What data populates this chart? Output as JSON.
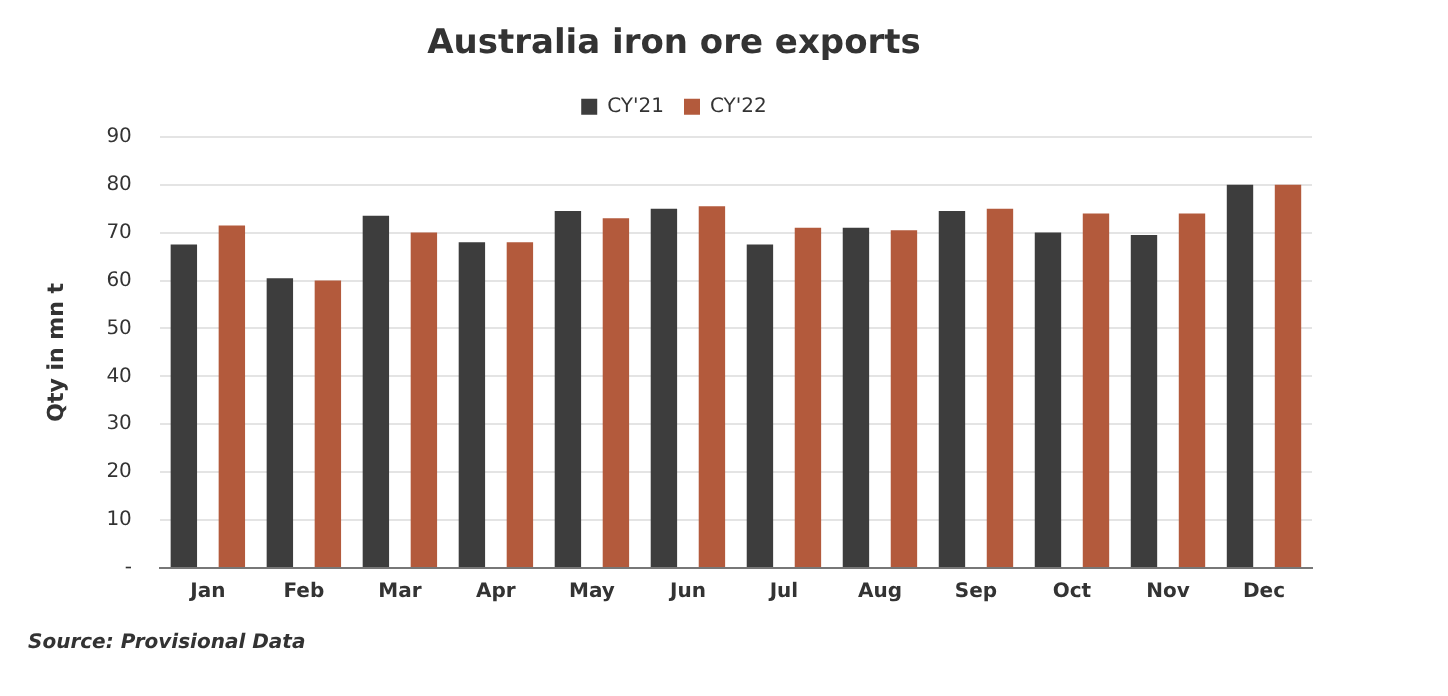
{
  "chart_data": {
    "type": "bar",
    "title": "Australia iron ore exports",
    "ylabel": "Qty in mn t",
    "categories": [
      "Jan",
      "Feb",
      "Mar",
      "Apr",
      "May",
      "Jun",
      "Jul",
      "Aug",
      "Sep",
      "Oct",
      "Nov",
      "Dec"
    ],
    "series": [
      {
        "name": "CY'21",
        "color": "#3d3d3d",
        "values": [
          67.5,
          60.5,
          73.5,
          68,
          74.5,
          75,
          67.5,
          71,
          74.5,
          70,
          69.5,
          80
        ]
      },
      {
        "name": "CY'22",
        "color": "#b35a3c",
        "values": [
          71.5,
          60,
          70,
          68,
          73,
          75.5,
          71,
          70.5,
          75,
          74,
          74,
          80
        ]
      }
    ],
    "ylim": [
      0,
      90
    ],
    "yticks": [
      {
        "value": 0,
        "label": "-"
      },
      10,
      20,
      30,
      40,
      50,
      60,
      70,
      80,
      90
    ],
    "grid": "y",
    "legend": "top",
    "annotations": [
      "Source: Provisional Data"
    ]
  }
}
